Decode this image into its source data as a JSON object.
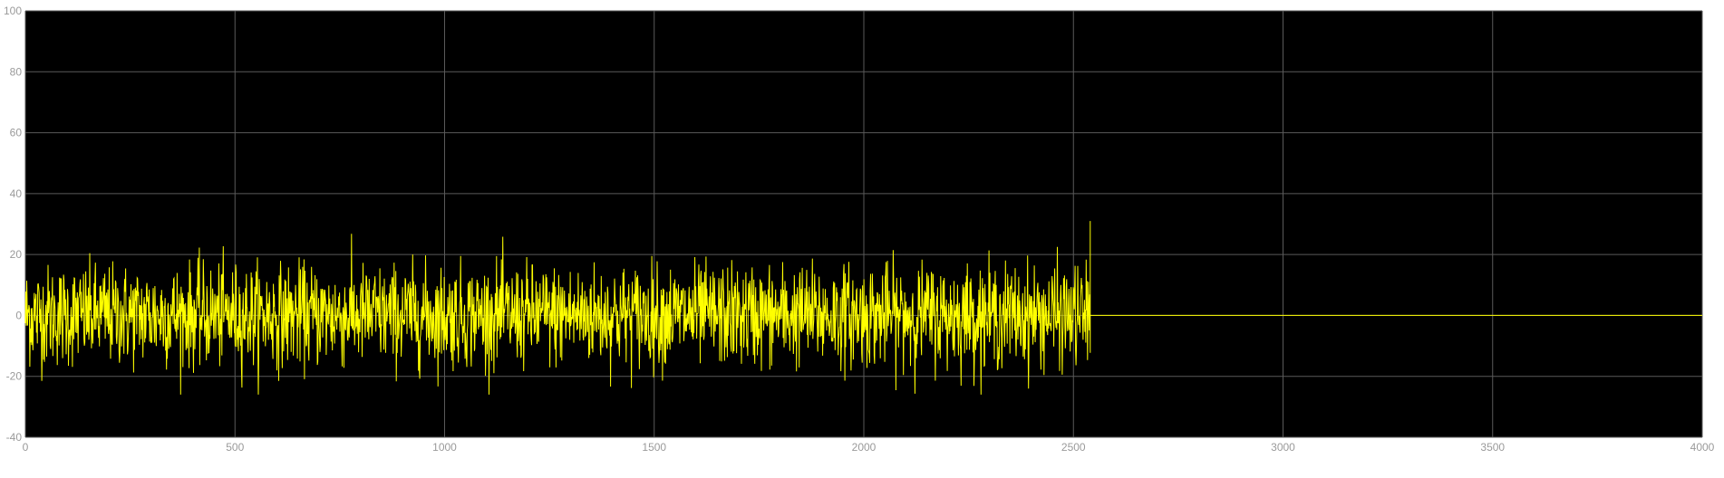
{
  "chart_data": {
    "type": "line",
    "title": "",
    "xlabel": "",
    "ylabel": "",
    "xlim": [
      0,
      4000
    ],
    "ylim": [
      -40,
      100
    ],
    "x_ticks": [
      0,
      500,
      1000,
      1500,
      2000,
      2500,
      3000,
      3500,
      4000
    ],
    "y_ticks": [
      -40,
      -20,
      0,
      20,
      40,
      60,
      80,
      100
    ],
    "x_tick_labels": [
      "0",
      "500",
      "1000",
      "1500",
      "2000",
      "2500",
      "3000",
      "3500",
      "4000"
    ],
    "y_tick_labels": [
      "-40",
      "-20",
      "0",
      "20",
      "40",
      "60",
      "80",
      "100"
    ],
    "grid": true,
    "background_color": "#000000",
    "grid_color": "#5a5a5a",
    "series": [
      {
        "color": "#ffff00",
        "signal": {
          "kind": "noise_then_constant",
          "noise_x_range": [
            0,
            2540
          ],
          "noise_mean": 0,
          "noise_typical_amplitude": 18,
          "noise_min": -26,
          "noise_max": 31,
          "constant_x_range": [
            2540,
            4000
          ],
          "constant_value": 0
        }
      }
    ]
  }
}
